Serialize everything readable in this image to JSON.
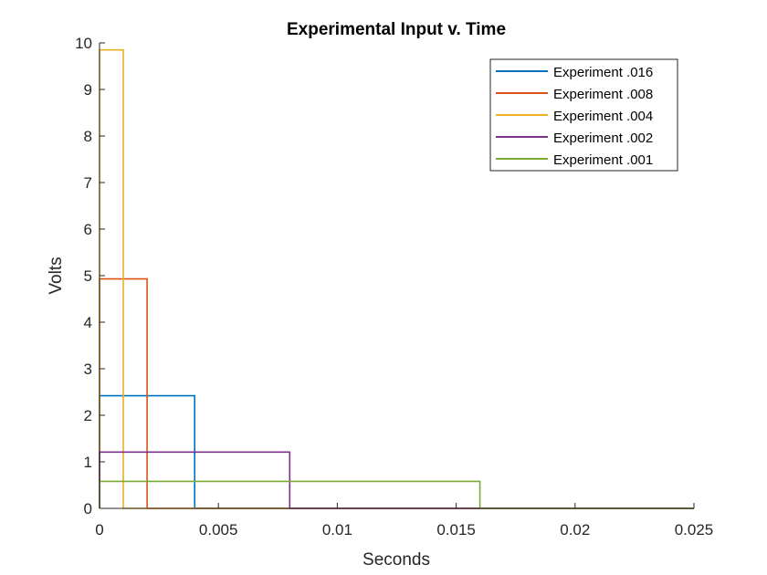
{
  "chart_data": {
    "type": "line",
    "title": "Experimental Input v. Time",
    "xlabel": "Seconds",
    "ylabel": "Volts",
    "xlim": [
      0,
      0.025
    ],
    "ylim": [
      0,
      10
    ],
    "xticks": [
      0,
      0.005,
      0.01,
      0.015,
      0.02,
      0.025
    ],
    "xtick_labels": [
      "0",
      "0.005",
      "0.01",
      "0.015",
      "0.02",
      "0.025"
    ],
    "yticks": [
      0,
      1,
      2,
      3,
      4,
      5,
      6,
      7,
      8,
      9,
      10
    ],
    "ytick_labels": [
      "0",
      "1",
      "2",
      "3",
      "4",
      "5",
      "6",
      "7",
      "8",
      "9",
      "10"
    ],
    "grid": false,
    "legend_position": "top-right",
    "series": [
      {
        "name": "Experiment .016",
        "color": "#0072BD",
        "x": [
          0,
          0,
          0.004,
          0.004,
          0.025
        ],
        "y": [
          0,
          2.42,
          2.42,
          0,
          0
        ]
      },
      {
        "name": "Experiment .008",
        "color": "#D95319",
        "x": [
          0,
          0,
          0.002,
          0.002,
          0.025
        ],
        "y": [
          0,
          4.93,
          4.93,
          0,
          0
        ]
      },
      {
        "name": "Experiment .004",
        "color": "#EDB120",
        "x": [
          0,
          0,
          0.001,
          0.001,
          0.025
        ],
        "y": [
          0,
          9.85,
          9.85,
          0,
          0
        ]
      },
      {
        "name": "Experiment .002",
        "color": "#7E2F8E",
        "x": [
          0,
          0,
          0.008,
          0.008,
          0.025
        ],
        "y": [
          0,
          1.21,
          1.21,
          0,
          0
        ]
      },
      {
        "name": "Experiment .001",
        "color": "#77AC30",
        "x": [
          0,
          0,
          0.016,
          0.016,
          0.025
        ],
        "y": [
          0,
          0.58,
          0.58,
          0,
          0
        ]
      }
    ]
  }
}
